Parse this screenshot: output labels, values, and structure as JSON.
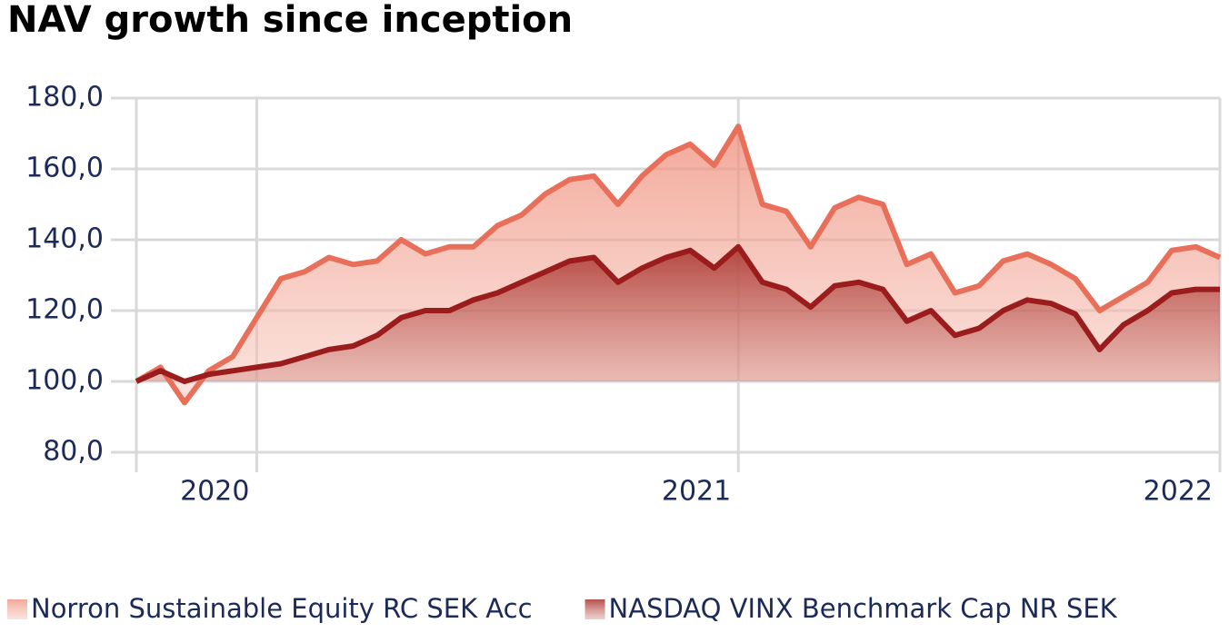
{
  "chart_data": {
    "type": "area",
    "title": "NAV growth since inception",
    "x": [
      2019.75,
      2019.8,
      2019.85,
      2019.9,
      2019.95,
      2020.0,
      2020.05,
      2020.1,
      2020.15,
      2020.2,
      2020.25,
      2020.3,
      2020.35,
      2020.4,
      2020.45,
      2020.5,
      2020.55,
      2020.6,
      2020.65,
      2020.7,
      2020.75,
      2020.8,
      2020.85,
      2020.9,
      2020.95,
      2021.0,
      2021.05,
      2021.1,
      2021.15,
      2021.2,
      2021.25,
      2021.3,
      2021.35,
      2021.4,
      2021.45,
      2021.5,
      2021.55,
      2021.6,
      2021.65,
      2021.7,
      2021.75,
      2021.8,
      2021.85,
      2021.9,
      2021.95,
      2022.0
    ],
    "series": [
      {
        "name": "Norron Sustainable Equity RC SEK Acc",
        "color": "#e8705a",
        "values": [
          100,
          104,
          94,
          103,
          107,
          118,
          129,
          131,
          135,
          133,
          134,
          140,
          136,
          138,
          138,
          144,
          147,
          153,
          157,
          158,
          150,
          158,
          164,
          167,
          161,
          172,
          150,
          148,
          138,
          149,
          152,
          150,
          133,
          136,
          125,
          127,
          134,
          136,
          133,
          129,
          120,
          124,
          128,
          137,
          138,
          135
        ]
      },
      {
        "name": "NASDAQ VINX Benchmark Cap NR SEK",
        "color": "#9b1c1c",
        "values": [
          100,
          103,
          100,
          102,
          103,
          104,
          105,
          107,
          109,
          110,
          113,
          118,
          120,
          120,
          123,
          125,
          128,
          131,
          134,
          135,
          128,
          132,
          135,
          137,
          132,
          138,
          128,
          126,
          121,
          127,
          128,
          126,
          117,
          120,
          113,
          115,
          120,
          123,
          122,
          119,
          109,
          116,
          120,
          125,
          126,
          126
        ]
      }
    ],
    "xlim": [
      2019.75,
      2022
    ],
    "xticks": [
      2020,
      2021,
      2022
    ],
    "ylim": [
      80,
      180
    ],
    "yticks": [
      {
        "value": 80,
        "label": "80,0"
      },
      {
        "value": 100,
        "label": "100,0"
      },
      {
        "value": 120,
        "label": "120,0"
      },
      {
        "value": 140,
        "label": "140,0"
      },
      {
        "value": 160,
        "label": "160,0"
      },
      {
        "value": 180,
        "label": "180,0"
      }
    ],
    "grid": true
  }
}
